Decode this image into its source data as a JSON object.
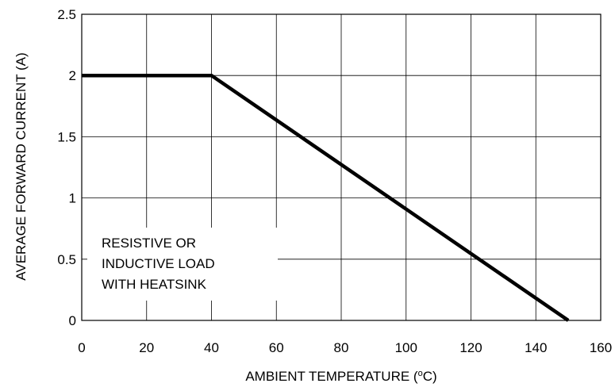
{
  "chart_data": {
    "type": "line",
    "xlabel": "AMBIENT TEMPERATURE (",
    "xlabel_unit_sup": "o",
    "xlabel_unit": "C)",
    "ylabel": "AVERAGE FORWARD CURRENT (A)",
    "xlim": [
      0,
      160
    ],
    "ylim": [
      0,
      2.5
    ],
    "x_ticks": [
      "0",
      "20",
      "40",
      "60",
      "80",
      "100",
      "120",
      "140",
      "160"
    ],
    "y_ticks": [
      "0",
      "0.5",
      "1",
      "1.5",
      "2",
      "2.5"
    ],
    "grid": true,
    "legend": "none",
    "series": [
      {
        "x": [
          0,
          40,
          150
        ],
        "y": [
          2,
          2,
          0
        ]
      }
    ],
    "annotation": [
      "RESISTIVE OR",
      "INDUCTIVE LOAD",
      "WITH HEATSINK"
    ]
  }
}
